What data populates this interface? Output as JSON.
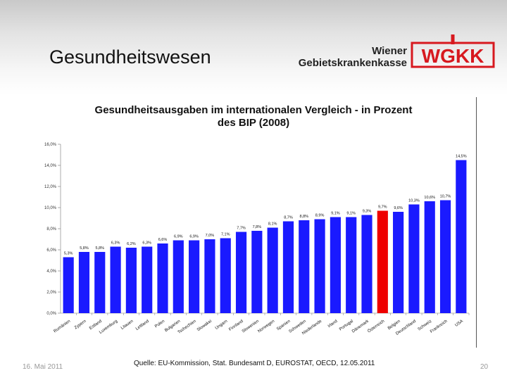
{
  "slide": {
    "title": "Gesundheitswesen",
    "logo_line1": "Wiener",
    "logo_line2": "Gebietskrankenkasse",
    "logo_mark": "WGKK",
    "date": "16. Mai 2011",
    "source": "Quelle: EU-Kommission, Stat. Bundesamt D, EUROSTAT, OECD, 12.05.2011",
    "page_number": "20"
  },
  "colors": {
    "bar": "#1a1aff",
    "highlight": "#ee0000",
    "brand_red": "#d7191f"
  },
  "chart_data": {
    "type": "bar",
    "title_line1": "Gesundheitsausgaben im internationalen Vergleich - in Prozent",
    "title_line2": "des BIP (2008)",
    "categories": [
      "Rumänien",
      "Zypern",
      "Estland",
      "Luxemburg",
      "Litauen",
      "Lettland",
      "Polen",
      "Bulgarien",
      "Tschechien",
      "Slowakei",
      "Ungarn",
      "Finnland",
      "Slowenien",
      "Norwegen",
      "Spanien",
      "Schweden",
      "Niederlande",
      "Irland",
      "Portugal",
      "Dänemark",
      "Österreich",
      "Belgien",
      "Deutschland",
      "Schweiz",
      "Frankreich",
      "USA"
    ],
    "values": [
      5.3,
      5.8,
      5.8,
      6.3,
      6.2,
      6.3,
      6.6,
      6.9,
      6.9,
      7.0,
      7.1,
      7.7,
      7.8,
      8.1,
      8.7,
      8.8,
      8.9,
      9.1,
      9.1,
      9.3,
      9.7,
      9.6,
      10.3,
      10.6,
      10.7,
      14.5
    ],
    "value_labels": [
      "5,3%",
      "5,8%",
      "5,8%",
      "6,3%",
      "6,2%",
      "6,3%",
      "6,6%",
      "6,9%",
      "6,9%",
      "7,0%",
      "7,1%",
      "7,7%",
      "7,8%",
      "8,1%",
      "8,7%",
      "8,8%",
      "8,9%",
      "9,1%",
      "9,1%",
      "9,3%",
      "9,7%",
      "9,6%",
      "10,3%",
      "10,6%",
      "10,7%",
      "14,5%"
    ],
    "highlight_index": 20,
    "yticks": [
      0,
      2,
      4,
      6,
      8,
      10,
      12,
      14,
      16
    ],
    "ytick_labels": [
      "0,0%",
      "2,0%",
      "4,0%",
      "6,0%",
      "8,0%",
      "10,0%",
      "12,0%",
      "14,0%",
      "16,0%"
    ],
    "ylim": [
      0,
      16
    ],
    "xlabel": "",
    "ylabel": ""
  }
}
